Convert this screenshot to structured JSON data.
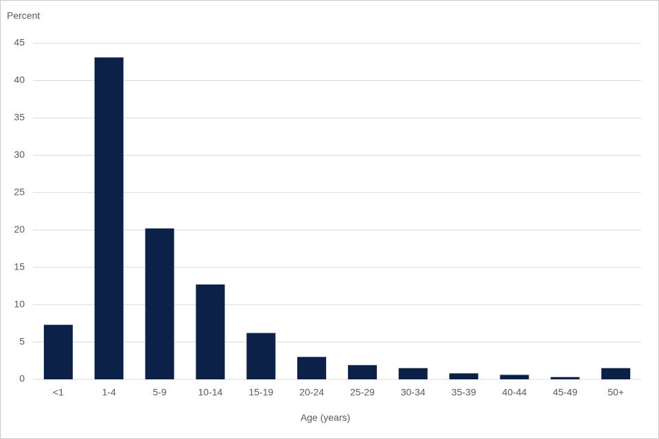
{
  "chart_data": {
    "type": "bar",
    "y_axis_label": "Percent",
    "x_axis_label": "Age (years)",
    "categories": [
      "<1",
      "1-4",
      "5-9",
      "10-14",
      "15-19",
      "20-24",
      "25-29",
      "30-34",
      "35-39",
      "40-44",
      "45-49",
      "50+"
    ],
    "values": [
      7.3,
      43.1,
      20.2,
      12.7,
      6.2,
      3.0,
      1.9,
      1.5,
      0.8,
      0.6,
      0.3,
      1.5
    ],
    "color": "#0c2148",
    "ylim": [
      0,
      45
    ],
    "yticks": [
      0,
      5,
      10,
      15,
      20,
      25,
      30,
      35,
      40,
      45
    ],
    "grid": true
  }
}
